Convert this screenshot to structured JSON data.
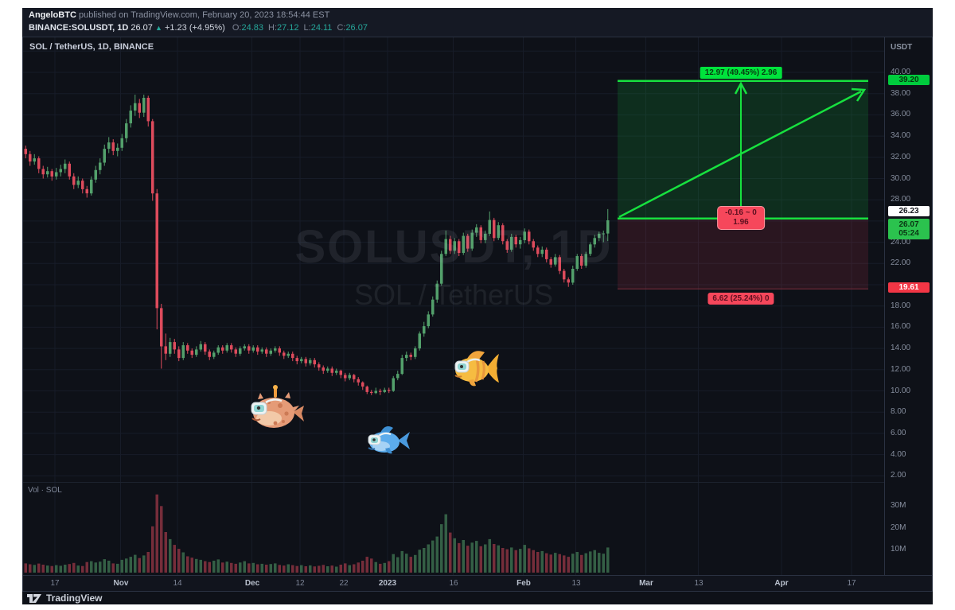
{
  "colors": {
    "background": "#0e1118",
    "grid": "#171c28",
    "up": "#53a06b",
    "down": "#dd4b5c",
    "vol_up": "rgba(84,160,108,0.55)",
    "vol_down": "rgba(222,74,92,0.5)",
    "tool_green": "#17e13f",
    "tool_green_fill": "rgba(20,200,65,0.16)",
    "tool_red_fill": "rgba(235,60,90,0.13)",
    "tool_stop_line": "#7d2f3d",
    "teal": "#26a69a",
    "axis_text": "#868e9e"
  },
  "header": {
    "line1": {
      "user": "AngeloBTC",
      "rest": "published on TradingView.com, February 20, 2023 18:54:44 EST"
    },
    "line2": {
      "symbol": "BINANCE:SOLUSDT, 1D",
      "price": "26.07",
      "triangle": "▲",
      "change": "+1.23 (+4.95%)",
      "ohlc": [
        [
          "O",
          "24.83"
        ],
        [
          "H",
          "27.12"
        ],
        [
          "L",
          "24.11"
        ],
        [
          "C",
          "26.07"
        ]
      ]
    }
  },
  "chart_header": {
    "title": "SOL / TetherUS, 1D, BINANCE"
  },
  "watermark": {
    "line1": "SOLUSDT, 1D",
    "line2": "SOL / TetherUS"
  },
  "position_tool": {
    "type": "long-position",
    "entry_price": 26.23,
    "target_price": 39.2,
    "stop_price": 19.61,
    "target_label": "12.97 (49.45%) 2.96",
    "entry_label_line1": "-0.16 ~ 0",
    "entry_label_line2": "1.96",
    "stop_label": "6.62 (25.24%) 0"
  },
  "price_axis": {
    "currency": "USDT",
    "tick_values": [
      40,
      38,
      36,
      34,
      32,
      30,
      28,
      24,
      22,
      18,
      16,
      14,
      12,
      10,
      8,
      6,
      4,
      2
    ],
    "target_tag": "39.20",
    "entry_tag": "26.23",
    "last_tag": "26.07",
    "countdown": "05:24",
    "stop_tag": "19.61"
  },
  "time_axis": {
    "labels": [
      {
        "text": "17",
        "day": 0,
        "bold": false
      },
      {
        "text": "Nov",
        "day": 15,
        "bold": true
      },
      {
        "text": "14",
        "day": 28,
        "bold": false
      },
      {
        "text": "Dec",
        "day": 45,
        "bold": true
      },
      {
        "text": "12",
        "day": 56,
        "bold": false
      },
      {
        "text": "22",
        "day": 66,
        "bold": false
      },
      {
        "text": "2023",
        "day": 76,
        "bold": true
      },
      {
        "text": "16",
        "day": 91,
        "bold": false
      },
      {
        "text": "Feb",
        "day": 107,
        "bold": true
      },
      {
        "text": "13",
        "day": 119,
        "bold": false
      },
      {
        "text": "Mar",
        "day": 135,
        "bold": true
      },
      {
        "text": "13",
        "day": 147,
        "bold": false
      },
      {
        "text": "Apr",
        "day": 166,
        "bold": true
      },
      {
        "text": "17",
        "day": 182,
        "bold": false
      }
    ]
  },
  "volume_pane": {
    "label": "Vol · SOL",
    "ticks": [
      {
        "text": "30M",
        "value": 30
      },
      {
        "text": "20M",
        "value": 20
      },
      {
        "text": "10M",
        "value": 10
      }
    ]
  },
  "stickers": [
    {
      "name": "tropical-fish-sticker",
      "color": "#f6bc41"
    },
    {
      "name": "puffer-fish-sticker",
      "color": "#e59b77"
    },
    {
      "name": "blue-fish-sticker",
      "color": "#5cacec"
    }
  ],
  "footer": {
    "brand": "TradingView"
  },
  "chart_data": {
    "type": "candlestick",
    "symbol": "SOLUSDT",
    "exchange": "BINANCE",
    "interval": "1D",
    "quote_currency": "USDT",
    "title": "SOL / TetherUS, 1D, BINANCE",
    "visible_price_range": [
      1.4,
      43.3
    ],
    "price_grid_step": 2.0,
    "volume_ticks_millions": [
      10,
      20,
      30
    ],
    "last_candle": {
      "open": 24.83,
      "high": 27.12,
      "low": 24.11,
      "close": 26.07,
      "change": "+1.23 (+4.95%)"
    },
    "long_position": {
      "entry": 26.23,
      "target": 39.2,
      "stop": 19.61,
      "reward": "12.97 (49.45%)",
      "risk": "6.62 (25.24%)"
    },
    "candles_ohlcv": [
      [
        32.8,
        33.1,
        31.9,
        32.3,
        4.2
      ],
      [
        32.3,
        32.6,
        31.2,
        31.6,
        3.8
      ],
      [
        31.6,
        32.3,
        31.3,
        31.9,
        3.5
      ],
      [
        31.9,
        32.1,
        30.5,
        30.9,
        4.1
      ],
      [
        30.9,
        31.2,
        30.0,
        30.4,
        3.6
      ],
      [
        30.4,
        31.1,
        30.1,
        30.7,
        3.2
      ],
      [
        30.7,
        30.9,
        29.8,
        30.2,
        3.0
      ],
      [
        30.2,
        31.0,
        29.9,
        30.6,
        3.4
      ],
      [
        30.6,
        31.3,
        30.2,
        30.9,
        3.1
      ],
      [
        30.9,
        31.8,
        30.5,
        31.4,
        3.6
      ],
      [
        31.4,
        31.6,
        29.9,
        30.2,
        3.9
      ],
      [
        30.2,
        30.5,
        29.0,
        29.4,
        4.4
      ],
      [
        29.4,
        30.2,
        29.1,
        29.8,
        3.2
      ],
      [
        29.8,
        30.0,
        28.6,
        29.0,
        3.0
      ],
      [
        29.0,
        29.3,
        28.2,
        28.6,
        4.8
      ],
      [
        28.6,
        30.2,
        28.4,
        29.9,
        5.2
      ],
      [
        29.9,
        31.2,
        29.6,
        30.8,
        4.6
      ],
      [
        30.8,
        31.9,
        30.4,
        31.5,
        5.0
      ],
      [
        31.5,
        33.2,
        31.2,
        32.8,
        6.1
      ],
      [
        32.8,
        33.9,
        32.4,
        33.4,
        5.4
      ],
      [
        33.4,
        33.7,
        32.2,
        32.6,
        4.2
      ],
      [
        32.6,
        33.3,
        32.1,
        32.9,
        4.0
      ],
      [
        32.9,
        34.2,
        32.6,
        33.8,
        5.8
      ],
      [
        33.8,
        35.6,
        33.4,
        35.2,
        6.4
      ],
      [
        35.2,
        36.9,
        34.8,
        36.4,
        7.2
      ],
      [
        36.4,
        37.9,
        35.9,
        37.1,
        8.1
      ],
      [
        37.1,
        37.5,
        35.7,
        36.2,
        6.6
      ],
      [
        36.2,
        37.9,
        35.8,
        37.6,
        7.8
      ],
      [
        37.6,
        37.8,
        34.9,
        35.4,
        9.4
      ],
      [
        35.4,
        35.6,
        27.9,
        28.6,
        21.0
      ],
      [
        28.6,
        29.0,
        15.8,
        17.8,
        35.5
      ],
      [
        17.8,
        18.2,
        12.1,
        14.2,
        30.2
      ],
      [
        14.2,
        15.4,
        12.9,
        13.5,
        18.4
      ],
      [
        13.5,
        15.0,
        13.2,
        14.6,
        15.2
      ],
      [
        14.6,
        14.9,
        13.5,
        13.9,
        12.6
      ],
      [
        13.9,
        14.2,
        12.8,
        13.1,
        10.8
      ],
      [
        13.1,
        14.6,
        12.9,
        14.3,
        9.2
      ],
      [
        14.3,
        14.5,
        13.5,
        13.8,
        7.4
      ],
      [
        13.8,
        14.0,
        13.1,
        13.4,
        6.8
      ],
      [
        13.4,
        14.2,
        13.2,
        13.9,
        6.2
      ],
      [
        13.9,
        14.7,
        13.7,
        14.4,
        5.8
      ],
      [
        14.4,
        14.6,
        13.4,
        13.7,
        5.2
      ],
      [
        13.7,
        13.9,
        12.9,
        13.2,
        4.8
      ],
      [
        13.2,
        13.8,
        13.0,
        13.6,
        5.4
      ],
      [
        13.6,
        14.3,
        13.4,
        14.1,
        6.0
      ],
      [
        14.1,
        14.3,
        13.5,
        13.8,
        4.6
      ],
      [
        13.8,
        14.5,
        13.6,
        14.3,
        5.0
      ],
      [
        14.3,
        14.5,
        13.6,
        13.9,
        4.4
      ],
      [
        13.9,
        14.1,
        13.2,
        13.5,
        4.0
      ],
      [
        13.5,
        14.2,
        13.3,
        14.0,
        4.6
      ],
      [
        14.0,
        14.4,
        13.8,
        14.2,
        5.2
      ],
      [
        14.2,
        14.4,
        13.5,
        13.8,
        4.2
      ],
      [
        13.8,
        14.3,
        13.6,
        14.1,
        4.4
      ],
      [
        14.1,
        14.3,
        13.4,
        13.7,
        3.8
      ],
      [
        13.7,
        14.1,
        13.5,
        13.9,
        4.0
      ],
      [
        13.9,
        14.1,
        13.2,
        13.5,
        3.6
      ],
      [
        13.5,
        14.0,
        13.3,
        13.8,
        3.9
      ],
      [
        13.8,
        14.2,
        13.6,
        14.0,
        4.2
      ],
      [
        14.0,
        14.2,
        13.3,
        13.6,
        3.5
      ],
      [
        13.6,
        13.8,
        13.0,
        13.3,
        3.2
      ],
      [
        13.3,
        13.7,
        13.1,
        13.5,
        3.8
      ],
      [
        13.5,
        13.7,
        12.8,
        13.1,
        3.4
      ],
      [
        13.1,
        13.3,
        12.5,
        12.8,
        3.0
      ],
      [
        12.8,
        13.2,
        12.6,
        13.0,
        3.4
      ],
      [
        13.0,
        13.2,
        12.3,
        12.6,
        2.9
      ],
      [
        12.6,
        13.1,
        12.4,
        12.9,
        3.3
      ],
      [
        12.9,
        13.1,
        12.2,
        12.5,
        2.8
      ],
      [
        12.5,
        12.7,
        11.9,
        12.2,
        3.1
      ],
      [
        12.2,
        12.4,
        11.6,
        11.9,
        3.5
      ],
      [
        11.9,
        12.3,
        11.7,
        12.1,
        2.9
      ],
      [
        12.1,
        12.3,
        11.4,
        11.7,
        3.2
      ],
      [
        11.7,
        12.1,
        11.5,
        11.9,
        2.7
      ],
      [
        11.9,
        12.0,
        11.2,
        11.5,
        3.6
      ],
      [
        11.5,
        11.7,
        10.9,
        11.2,
        4.2
      ],
      [
        11.2,
        11.7,
        11.0,
        11.5,
        3.4
      ],
      [
        11.5,
        11.6,
        10.8,
        11.1,
        3.8
      ],
      [
        11.1,
        11.3,
        10.5,
        10.8,
        4.6
      ],
      [
        10.8,
        10.9,
        10.1,
        10.4,
        5.4
      ],
      [
        10.4,
        10.5,
        9.7,
        9.9,
        7.2
      ],
      [
        9.9,
        10.1,
        9.6,
        9.8,
        6.4
      ],
      [
        9.8,
        10.3,
        9.7,
        10.0,
        4.8
      ],
      [
        10.0,
        10.2,
        9.6,
        9.9,
        4.0
      ],
      [
        9.9,
        10.3,
        9.8,
        10.1,
        4.4
      ],
      [
        10.1,
        10.3,
        9.8,
        10.0,
        5.2
      ],
      [
        10.0,
        11.4,
        9.9,
        11.2,
        8.4
      ],
      [
        11.2,
        11.9,
        11.0,
        11.6,
        7.0
      ],
      [
        11.6,
        13.4,
        11.5,
        13.1,
        9.8
      ],
      [
        13.1,
        13.7,
        12.8,
        13.4,
        8.6
      ],
      [
        13.4,
        13.6,
        12.9,
        13.2,
        7.2
      ],
      [
        13.2,
        14.2,
        13.0,
        14.0,
        8.0
      ],
      [
        14.0,
        15.6,
        13.8,
        15.4,
        10.4
      ],
      [
        15.4,
        16.5,
        15.1,
        16.1,
        11.2
      ],
      [
        16.1,
        17.5,
        15.9,
        17.2,
        12.8
      ],
      [
        17.2,
        18.9,
        17.0,
        18.6,
        14.6
      ],
      [
        18.6,
        20.4,
        18.3,
        20.1,
        16.4
      ],
      [
        20.1,
        23.2,
        19.9,
        22.9,
        22.0
      ],
      [
        22.9,
        25.1,
        22.7,
        24.3,
        26.5
      ],
      [
        24.3,
        24.6,
        22.9,
        23.2,
        18.2
      ],
      [
        23.2,
        24.4,
        22.9,
        24.1,
        15.6
      ],
      [
        24.1,
        24.3,
        22.7,
        23.0,
        13.4
      ],
      [
        23.0,
        24.9,
        22.8,
        24.6,
        14.8
      ],
      [
        24.6,
        24.8,
        23.1,
        23.4,
        12.2
      ],
      [
        23.4,
        25.2,
        23.2,
        24.9,
        13.6
      ],
      [
        24.9,
        25.7,
        24.5,
        25.4,
        14.4
      ],
      [
        25.4,
        25.6,
        23.9,
        24.2,
        12.0
      ],
      [
        24.2,
        25.1,
        23.9,
        24.8,
        12.8
      ],
      [
        24.8,
        26.9,
        24.6,
        26.1,
        15.2
      ],
      [
        26.1,
        26.3,
        24.1,
        24.4,
        13.0
      ],
      [
        24.4,
        25.9,
        24.2,
        25.6,
        12.4
      ],
      [
        25.6,
        25.8,
        23.8,
        24.1,
        11.2
      ],
      [
        24.1,
        24.3,
        23.0,
        23.3,
        10.6
      ],
      [
        23.3,
        24.8,
        23.1,
        24.5,
        11.4
      ],
      [
        24.5,
        24.7,
        23.5,
        23.8,
        10.2
      ],
      [
        23.8,
        24.5,
        23.4,
        24.2,
        10.8
      ],
      [
        24.2,
        25.3,
        23.9,
        25.0,
        12.6
      ],
      [
        25.0,
        25.2,
        23.8,
        24.1,
        11.0
      ],
      [
        24.1,
        24.3,
        23.2,
        23.5,
        10.2
      ],
      [
        23.5,
        23.7,
        22.6,
        22.9,
        9.4
      ],
      [
        22.9,
        23.6,
        22.6,
        23.3,
        9.8
      ],
      [
        23.3,
        23.5,
        22.1,
        22.4,
        8.8
      ],
      [
        22.4,
        22.6,
        21.6,
        21.9,
        8.2
      ],
      [
        21.9,
        22.9,
        21.7,
        22.6,
        9.0
      ],
      [
        22.6,
        22.8,
        21.0,
        21.3,
        8.4
      ],
      [
        21.3,
        21.5,
        20.2,
        20.5,
        7.8
      ],
      [
        20.5,
        20.7,
        19.8,
        20.2,
        7.2
      ],
      [
        20.2,
        21.8,
        20.0,
        21.5,
        8.6
      ],
      [
        21.5,
        22.9,
        21.3,
        22.7,
        9.4
      ],
      [
        22.7,
        22.9,
        21.5,
        21.8,
        8.0
      ],
      [
        21.8,
        23.1,
        21.6,
        22.9,
        8.8
      ],
      [
        22.9,
        24.0,
        22.7,
        23.8,
        9.6
      ],
      [
        23.8,
        24.7,
        23.5,
        24.4,
        10.2
      ],
      [
        24.4,
        25.0,
        24.1,
        24.8,
        9.0
      ],
      [
        24.8,
        25.1,
        24.0,
        24.83,
        8.6
      ],
      [
        24.83,
        27.12,
        24.11,
        26.07,
        11.4
      ]
    ]
  }
}
